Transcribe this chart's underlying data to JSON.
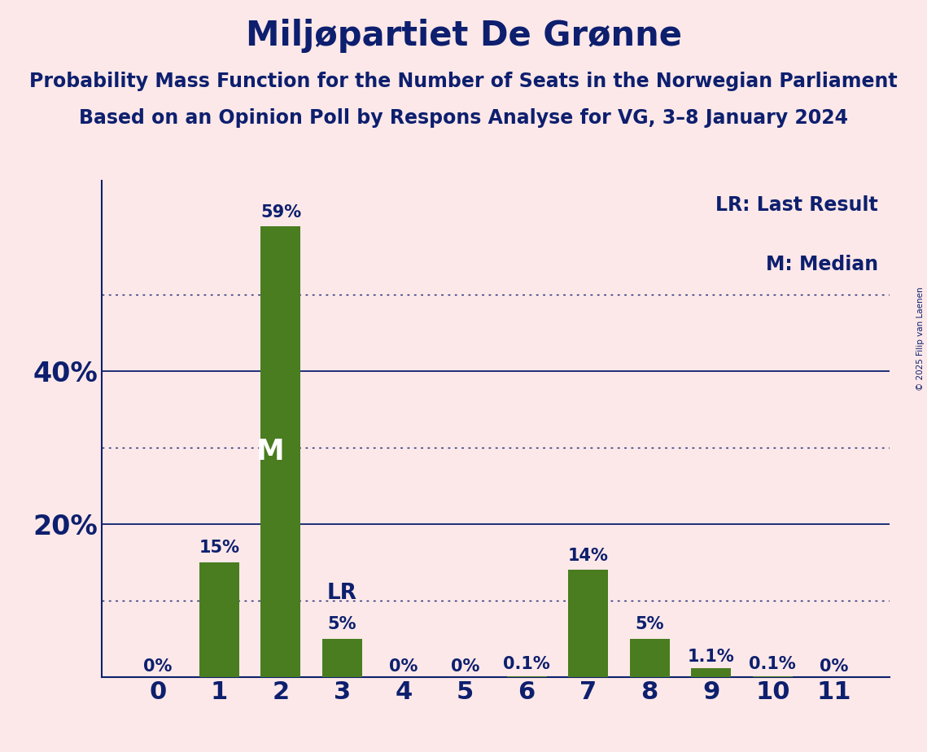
{
  "title": "Miljøpartiet De Grønne",
  "subtitle1": "Probability Mass Function for the Number of Seats in the Norwegian Parliament",
  "subtitle2": "Based on an Opinion Poll by Respons Analyse for VG, 3–8 January 2024",
  "copyright": "© 2025 Filip van Laenen",
  "categories": [
    0,
    1,
    2,
    3,
    4,
    5,
    6,
    7,
    8,
    9,
    10,
    11
  ],
  "values": [
    0.0,
    15.0,
    59.0,
    5.0,
    0.0,
    0.0,
    0.1,
    14.0,
    5.0,
    1.1,
    0.1,
    0.0
  ],
  "bar_labels": [
    "0%",
    "15%",
    "59%",
    "5%",
    "0%",
    "0%",
    "0.1%",
    "14%",
    "5%",
    "1.1%",
    "0.1%",
    "0%"
  ],
  "bar_color": "#4a7c20",
  "background_color": "#fce8e8",
  "text_color": "#0d1f6e",
  "lr_index": 3,
  "median_index": 2,
  "lr_label": "LR",
  "median_label": "M",
  "legend_lr": "LR: Last Result",
  "legend_m": "M: Median",
  "ylim": [
    0,
    65
  ],
  "yticks_solid": [
    20,
    40
  ],
  "yticks_dotted": [
    10,
    30,
    50
  ],
  "ylabel_ticks": [
    20,
    40
  ],
  "title_fontsize": 30,
  "subtitle_fontsize": 17,
  "tick_fontsize": 20,
  "legend_fontsize": 17,
  "bar_label_fontsize": 15,
  "annotation_fontsize": 19
}
